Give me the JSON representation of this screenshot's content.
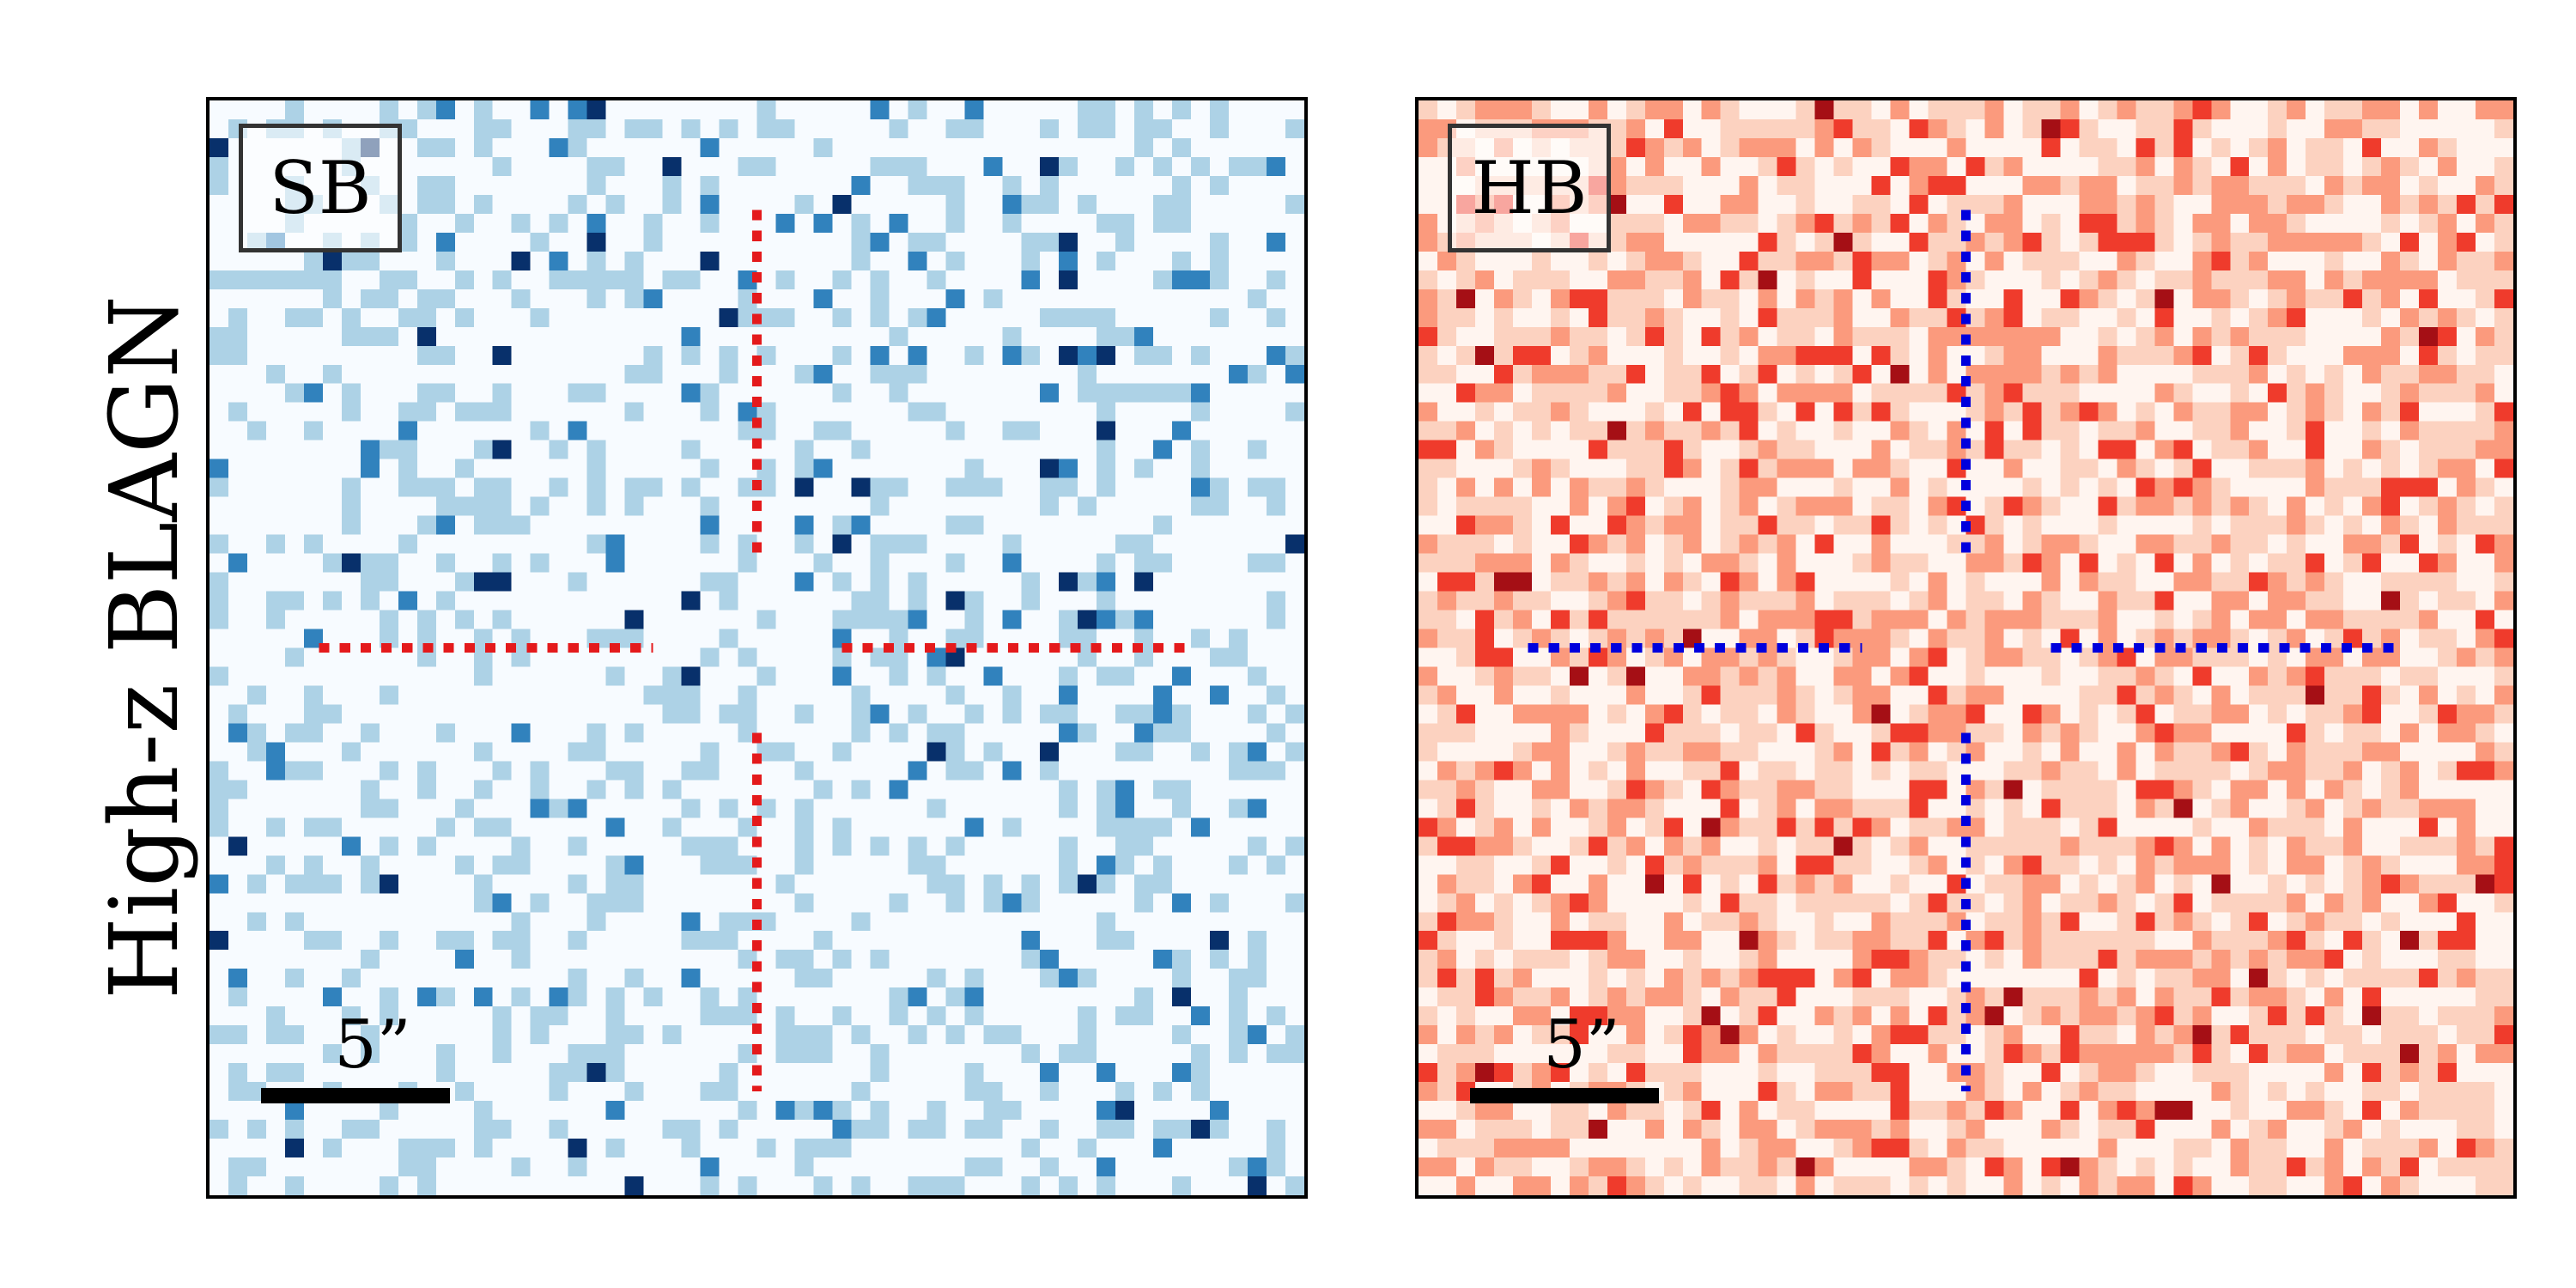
{
  "figure": {
    "row_label": "High-z BLAGN",
    "panels": [
      {
        "id": "left",
        "label": "SB",
        "colormap": "blues",
        "palette": [
          "#f7fbff",
          "#add2e6",
          "#3182bd",
          "#08306b"
        ],
        "cross_color": "#e41a1c",
        "scalebar_label": "5”"
      },
      {
        "id": "right",
        "label": "HB",
        "colormap": "reds",
        "palette": [
          "#fff5f0",
          "#fcd2c0",
          "#fb9a7d",
          "#ef3b2c",
          "#a50f15"
        ],
        "cross_color": "#0000dd",
        "scalebar_label": "5”"
      }
    ]
  },
  "chart_data": {
    "type": "heatmap",
    "title": "",
    "xlabel": "",
    "ylabel": "High-z BLAGN",
    "grid": false,
    "grid_size": [
      58,
      58
    ],
    "series": [
      {
        "name": "SB",
        "colormap": "Blues",
        "count_levels": [
          0,
          1,
          2,
          3
        ]
      },
      {
        "name": "HB",
        "colormap": "Reds",
        "count_levels": [
          0,
          1,
          2,
          3,
          4
        ]
      }
    ],
    "scalebar": "5”"
  }
}
